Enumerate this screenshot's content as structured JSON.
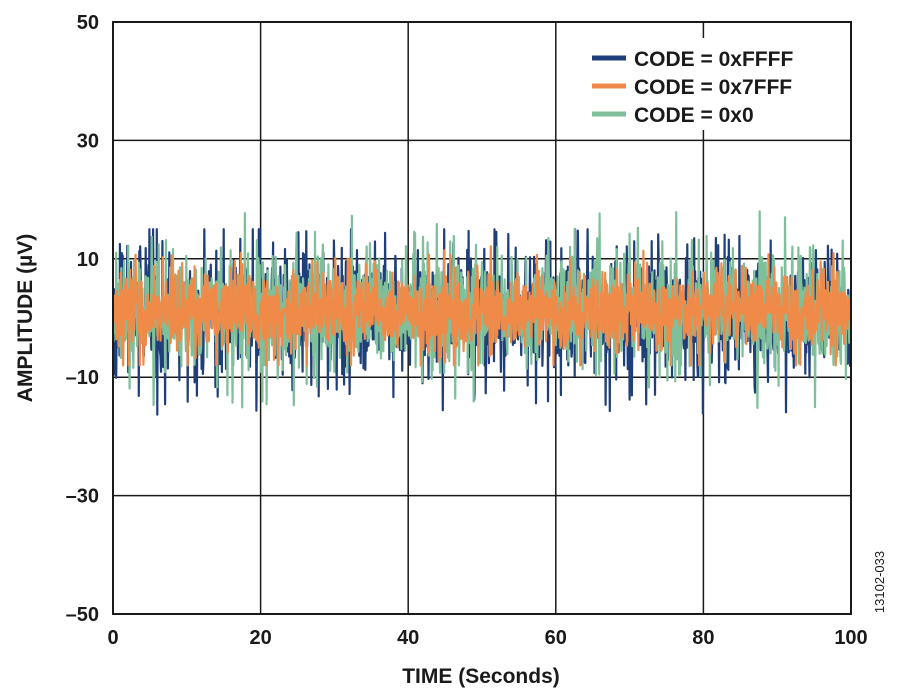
{
  "chart_data": {
    "type": "line",
    "title": "",
    "xlabel": "TIME (Seconds)",
    "ylabel": "AMPLITUDE (µV)",
    "xlim": [
      0,
      100
    ],
    "ylim": [
      -50,
      50
    ],
    "x_ticks": [
      0,
      20,
      40,
      60,
      80,
      100
    ],
    "x_tick_labels": [
      "0",
      "20",
      "40",
      "60",
      "80",
      "100"
    ],
    "y_ticks": [
      50,
      30,
      10,
      -10,
      -30,
      -50
    ],
    "y_tick_labels": [
      "50",
      "30",
      "10",
      "–10",
      "–30",
      "–50"
    ],
    "grid": true,
    "legend_position": "top-right",
    "figure_id": "13102-033",
    "series": [
      {
        "name": "CODE = 0xFFFF",
        "color": "#1f3f7a",
        "approx_range": [
          -17,
          15
        ],
        "typical_band": [
          -10,
          12
        ]
      },
      {
        "name": "CODE = 0x0",
        "color": "#7fbf9a",
        "approx_range": [
          -18,
          19
        ],
        "typical_band": [
          -9,
          12
        ]
      },
      {
        "name": "CODE = 0x7FFF",
        "color": "#f08a48",
        "approx_range": [
          -8,
          13
        ],
        "typical_band": [
          -6,
          8
        ]
      }
    ],
    "legend_order": [
      "CODE = 0xFFFF",
      "CODE = 0x7FFF",
      "CODE = 0x0"
    ]
  }
}
